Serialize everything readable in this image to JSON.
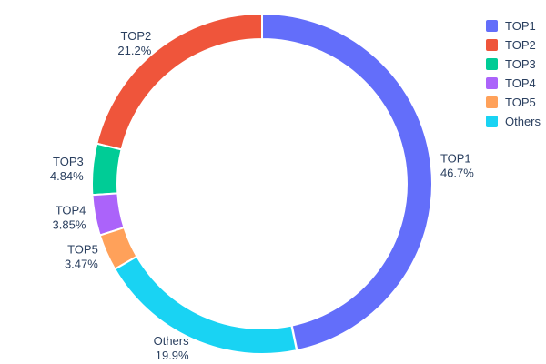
{
  "chart_data": {
    "type": "pie",
    "subtype": "donut",
    "hole": 0.85,
    "title": "",
    "labels": [
      "TOP1",
      "TOP2",
      "TOP3",
      "TOP4",
      "TOP5",
      "Others"
    ],
    "values": [
      46.7,
      21.2,
      4.84,
      3.85,
      3.47,
      19.9
    ],
    "percent_labels": [
      "46.7%",
      "21.2%",
      "4.84%",
      "3.85%",
      "3.47%",
      "19.9%"
    ],
    "colors": [
      "#636EFA",
      "#EF553B",
      "#00CC96",
      "#AB63FA",
      "#FFA15A",
      "#19D3F3"
    ],
    "text_color": "#2a3f5f",
    "slice_border_color": "#ffffff",
    "start_angle_deg": 0,
    "first_slice_direction": "clockwise-from-top",
    "legend": {
      "position": "top-right",
      "entries": [
        "TOP1",
        "TOP2",
        "TOP3",
        "TOP4",
        "TOP5",
        "Others"
      ]
    }
  }
}
